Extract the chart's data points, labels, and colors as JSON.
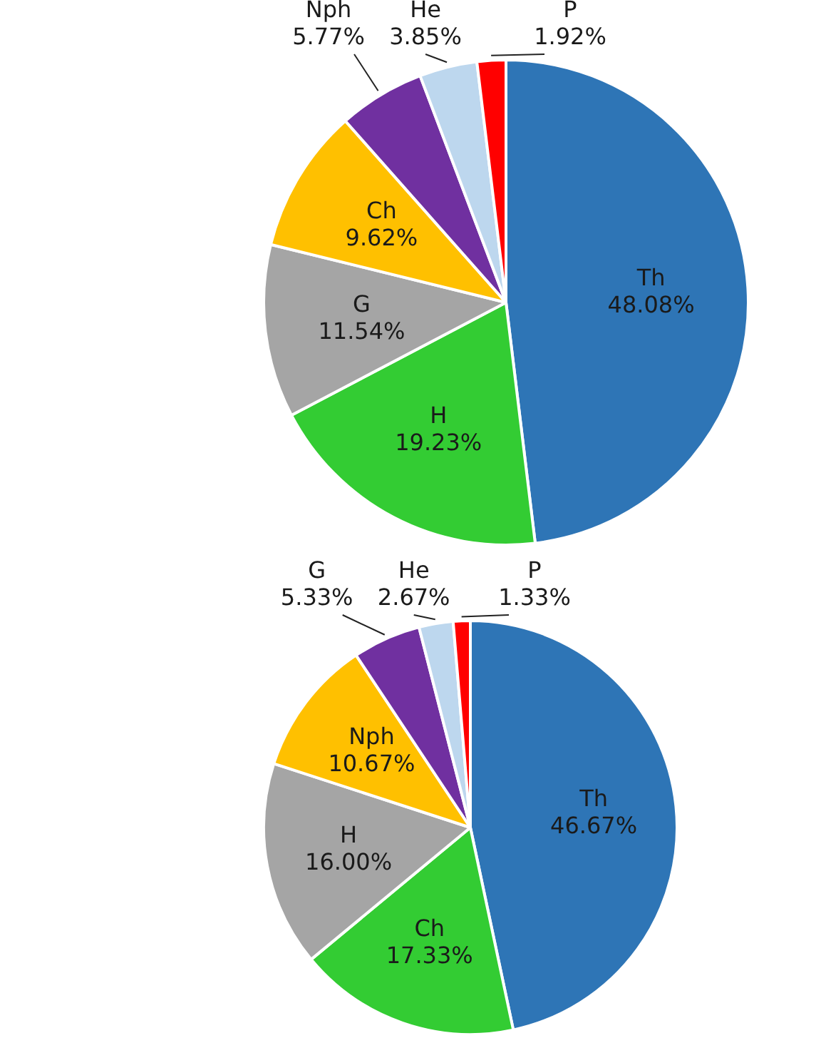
{
  "chart_data": [
    {
      "type": "pie",
      "categories": [
        "Th",
        "H",
        "G",
        "Ch",
        "Nph",
        "He",
        "P"
      ],
      "values": [
        48.08,
        19.23,
        11.54,
        9.62,
        5.77,
        3.85,
        1.92
      ],
      "value_labels": [
        "48.08%",
        "19.23%",
        "11.54%",
        "9.62%",
        "5.77%",
        "3.85%",
        "1.92%"
      ],
      "colors": [
        "#2e75b6",
        "#33cc33",
        "#a5a5a5",
        "#ffc000",
        "#7030a0",
        "#bdd7ee",
        "#ff0000"
      ]
    },
    {
      "type": "pie",
      "categories": [
        "Th",
        "Ch",
        "H",
        "Nph",
        "G",
        "He",
        "P"
      ],
      "values": [
        46.67,
        17.33,
        16.0,
        10.67,
        5.33,
        2.67,
        1.33
      ],
      "value_labels": [
        "46.67%",
        "17.33%",
        "16.00%",
        "10.67%",
        "5.33%",
        "2.67%",
        "1.33%"
      ],
      "colors": [
        "#2e75b6",
        "#33cc33",
        "#a5a5a5",
        "#ffc000",
        "#7030a0",
        "#bdd7ee",
        "#ff0000"
      ]
    }
  ]
}
